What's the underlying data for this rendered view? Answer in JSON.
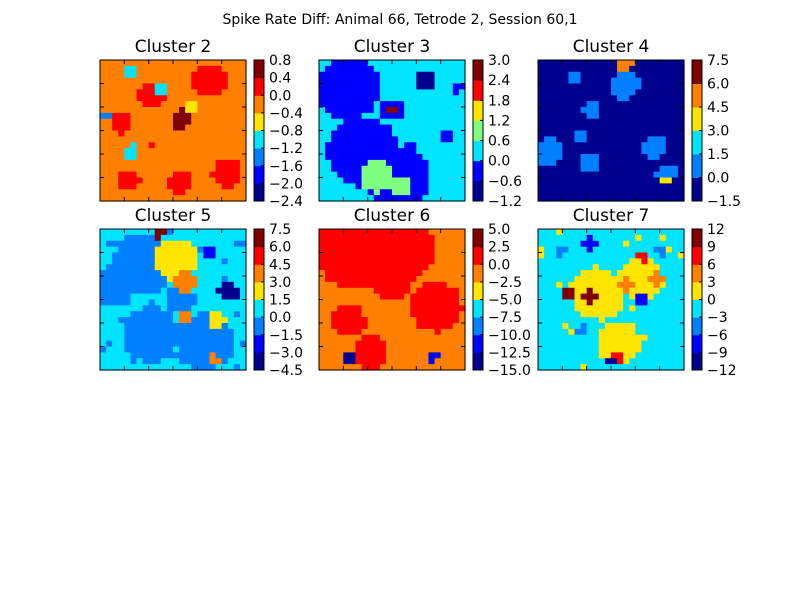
{
  "figure": {
    "title": "Spike Rate Diff: Animal 66, Tetrode 2, Session 60,1"
  },
  "colormap": [
    "#00008f",
    "#0000ff",
    "#0080ff",
    "#00e5ff",
    "#7fff7f",
    "#ffe500",
    "#ff8000",
    "#ff0000",
    "#800000"
  ],
  "chart_data": [
    {
      "type": "heatmap",
      "title": "Cluster 2",
      "colorbar_ticks": [
        "0.8",
        "0.4",
        "0.0",
        "−0.4",
        "−0.8",
        "−1.2",
        "−1.6",
        "−2.0",
        "−2.4"
      ],
      "levels": [
        -2.4,
        -2.0,
        -1.6,
        -1.2,
        -0.8,
        -0.4,
        0.0,
        0.4,
        0.8
      ],
      "base_value": -0.2,
      "features": [
        {
          "x": 0.15,
          "y": 0.45,
          "r": 0.08,
          "v": 0.2
        },
        {
          "x": 0.35,
          "y": 0.25,
          "r": 0.1,
          "v": 0.2
        },
        {
          "x": 0.75,
          "y": 0.15,
          "r": 0.12,
          "v": 0.2
        },
        {
          "x": 0.2,
          "y": 0.85,
          "r": 0.08,
          "v": 0.2
        },
        {
          "x": 0.55,
          "y": 0.87,
          "r": 0.08,
          "v": 0.2
        },
        {
          "x": 0.87,
          "y": 0.8,
          "r": 0.1,
          "v": 0.2
        },
        {
          "x": 0.55,
          "y": 0.42,
          "r": 0.07,
          "v": 0.6
        },
        {
          "x": 0.35,
          "y": 0.6,
          "r": 0.03,
          "v": 0.2
        },
        {
          "x": 0.2,
          "y": 0.07,
          "r": 0.05,
          "v": -1.0
        },
        {
          "x": 0.42,
          "y": 0.2,
          "r": 0.04,
          "v": -1.0
        },
        {
          "x": 0.22,
          "y": 0.65,
          "r": 0.05,
          "v": -1.0
        },
        {
          "x": 0.62,
          "y": 0.33,
          "r": 0.04,
          "v": -0.6
        },
        {
          "x": 0.05,
          "y": 0.4,
          "r": 0.03,
          "v": -1.4
        }
      ]
    },
    {
      "type": "heatmap",
      "title": "Cluster 3",
      "colorbar_ticks": [
        "3.0",
        "2.4",
        "1.8",
        "1.2",
        "0.6",
        "0.0",
        "−0.6",
        "−1.2"
      ],
      "levels": [
        -1.2,
        -0.6,
        0.0,
        0.6,
        1.2,
        1.8,
        2.4,
        3.0
      ],
      "base_value": 0.3,
      "features": [
        {
          "x": 0.2,
          "y": 0.2,
          "r": 0.22,
          "v": -0.4
        },
        {
          "x": 0.3,
          "y": 0.65,
          "r": 0.25,
          "v": -0.4
        },
        {
          "x": 0.55,
          "y": 0.85,
          "r": 0.22,
          "v": -0.4
        },
        {
          "x": 0.4,
          "y": 0.82,
          "r": 0.12,
          "v": 0.9
        },
        {
          "x": 0.55,
          "y": 0.9,
          "r": 0.08,
          "v": 0.9
        },
        {
          "x": 0.5,
          "y": 0.35,
          "r": 0.08,
          "v": -0.4
        },
        {
          "x": 0.5,
          "y": 0.35,
          "r": 0.04,
          "v": 2.8
        },
        {
          "x": 0.72,
          "y": 0.15,
          "r": 0.07,
          "v": -0.9
        },
        {
          "x": 0.88,
          "y": 0.55,
          "r": 0.05,
          "v": -0.4
        },
        {
          "x": 0.62,
          "y": 0.62,
          "r": 0.05,
          "v": -0.4
        },
        {
          "x": 0.95,
          "y": 0.2,
          "r": 0.04,
          "v": -0.4
        }
      ]
    },
    {
      "type": "heatmap",
      "title": "Cluster 4",
      "colorbar_ticks": [
        "7.5",
        "6.0",
        "4.5",
        "3.0",
        "1.5",
        "0.0",
        "−1.5"
      ],
      "levels": [
        -1.5,
        0.0,
        1.5,
        3.0,
        4.5,
        6.0,
        7.5
      ],
      "base_value": -0.8,
      "features": [
        {
          "x": 0.08,
          "y": 0.65,
          "r": 0.1,
          "v": 0.7
        },
        {
          "x": 0.6,
          "y": 0.18,
          "r": 0.1,
          "v": 0.7
        },
        {
          "x": 0.25,
          "y": 0.12,
          "r": 0.06,
          "v": 0.7
        },
        {
          "x": 0.35,
          "y": 0.72,
          "r": 0.07,
          "v": 0.7
        },
        {
          "x": 0.8,
          "y": 0.62,
          "r": 0.08,
          "v": 0.7
        },
        {
          "x": 0.88,
          "y": 0.8,
          "r": 0.07,
          "v": 0.7
        },
        {
          "x": 0.88,
          "y": 0.85,
          "r": 0.04,
          "v": 3.5
        },
        {
          "x": 0.6,
          "y": 0.04,
          "r": 0.05,
          "v": 5.0
        },
        {
          "x": 0.3,
          "y": 0.55,
          "r": 0.05,
          "v": 0.7
        },
        {
          "x": 0.37,
          "y": 0.35,
          "r": 0.06,
          "v": 0.7
        }
      ]
    },
    {
      "type": "heatmap",
      "title": "Cluster 5",
      "colorbar_ticks": [
        "7.5",
        "6.0",
        "4.5",
        "3.0",
        "1.5",
        "0.0",
        "−1.5",
        "−3.0",
        "−4.5"
      ],
      "levels": [
        -4.5,
        -3.0,
        -1.5,
        0.0,
        1.5,
        3.0,
        4.5,
        6.0,
        7.5
      ],
      "base_value": 0.6,
      "features": [
        {
          "x": 0.3,
          "y": 0.25,
          "r": 0.22,
          "v": -0.8
        },
        {
          "x": 0.1,
          "y": 0.4,
          "r": 0.15,
          "v": -0.8
        },
        {
          "x": 0.55,
          "y": 0.5,
          "r": 0.1,
          "v": -0.8
        },
        {
          "x": 0.35,
          "y": 0.75,
          "r": 0.2,
          "v": -0.8
        },
        {
          "x": 0.72,
          "y": 0.8,
          "r": 0.2,
          "v": -0.8
        },
        {
          "x": 0.52,
          "y": 0.22,
          "r": 0.15,
          "v": 2.0
        },
        {
          "x": 0.58,
          "y": 0.38,
          "r": 0.08,
          "v": 3.8
        },
        {
          "x": 0.58,
          "y": 0.62,
          "r": 0.05,
          "v": 3.8
        },
        {
          "x": 0.8,
          "y": 0.65,
          "r": 0.06,
          "v": 2.0
        },
        {
          "x": 0.4,
          "y": 0.03,
          "r": 0.04,
          "v": 6.5
        },
        {
          "x": 0.88,
          "y": 0.45,
          "r": 0.07,
          "v": -3.8
        },
        {
          "x": 0.75,
          "y": 0.15,
          "r": 0.05,
          "v": -2.2
        },
        {
          "x": 0.78,
          "y": 0.92,
          "r": 0.04,
          "v": 3.8
        }
      ]
    },
    {
      "type": "heatmap",
      "title": "Cluster 6",
      "colorbar_ticks": [
        "5.0",
        "2.5",
        "0.0",
        "−2.5",
        "−5.0",
        "−7.5",
        "−10.0",
        "−12.5",
        "−15.0"
      ],
      "levels": [
        -15.0,
        -12.5,
        -10.0,
        -7.5,
        -5.0,
        -2.5,
        0.0,
        2.5,
        5.0
      ],
      "base_value": -1.2,
      "features": [
        {
          "x": 0.25,
          "y": 0.15,
          "r": 0.28,
          "v": 1.5
        },
        {
          "x": 0.6,
          "y": 0.15,
          "r": 0.2,
          "v": 1.5
        },
        {
          "x": 0.5,
          "y": 0.35,
          "r": 0.15,
          "v": 1.5
        },
        {
          "x": 0.8,
          "y": 0.55,
          "r": 0.18,
          "v": 1.5
        },
        {
          "x": 0.2,
          "y": 0.65,
          "r": 0.12,
          "v": 1.5
        },
        {
          "x": 0.35,
          "y": 0.88,
          "r": 0.12,
          "v": 1.5
        },
        {
          "x": 0.2,
          "y": 0.92,
          "r": 0.05,
          "v": -13.0
        },
        {
          "x": 0.78,
          "y": 0.9,
          "r": 0.04,
          "v": -11.5
        }
      ]
    },
    {
      "type": "heatmap",
      "title": "Cluster 7",
      "colorbar_ticks": [
        "12",
        "9",
        "6",
        "3",
        "0",
        "−3",
        "−6",
        "−9",
        "−12"
      ],
      "levels": [
        -12,
        -9,
        -6,
        -3,
        0,
        3,
        6,
        9,
        12
      ],
      "base_value": -1.2,
      "features": [
        {
          "x": 0.4,
          "y": 0.45,
          "r": 0.18,
          "v": 1.5
        },
        {
          "x": 0.7,
          "y": 0.35,
          "r": 0.15,
          "v": 1.5
        },
        {
          "x": 0.55,
          "y": 0.8,
          "r": 0.15,
          "v": 1.5
        },
        {
          "x": 0.2,
          "y": 0.45,
          "r": 0.05,
          "v": 9.5
        },
        {
          "x": 0.35,
          "y": 0.48,
          "r": 0.05,
          "v": 9.5
        },
        {
          "x": 0.6,
          "y": 0.4,
          "r": 0.05,
          "v": 4.5
        },
        {
          "x": 0.72,
          "y": 0.2,
          "r": 0.04,
          "v": 7.5
        },
        {
          "x": 0.82,
          "y": 0.35,
          "r": 0.05,
          "v": 4.5
        },
        {
          "x": 0.55,
          "y": 0.92,
          "r": 0.04,
          "v": 7.5
        },
        {
          "x": 0.35,
          "y": 0.1,
          "r": 0.05,
          "v": -7.5
        },
        {
          "x": 0.15,
          "y": 0.15,
          "r": 0.04,
          "v": -4.5
        },
        {
          "x": 0.7,
          "y": 0.5,
          "r": 0.04,
          "v": -7.5
        },
        {
          "x": 0.3,
          "y": 0.72,
          "r": 0.04,
          "v": -4.5
        },
        {
          "x": 0.5,
          "y": 0.95,
          "r": 0.03,
          "v": -10.5
        },
        {
          "x": 0.85,
          "y": 0.15,
          "r": 0.04,
          "v": -4.5
        }
      ]
    }
  ]
}
